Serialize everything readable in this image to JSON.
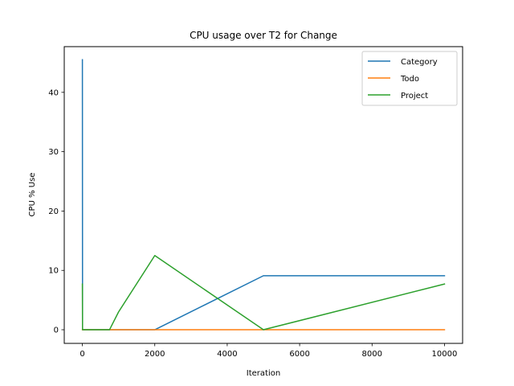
{
  "chart_data": {
    "type": "line",
    "title": "CPU usage over T2 for Change",
    "xlabel": "Iteration",
    "ylabel": "CPU % Use",
    "xlim": [
      -500,
      10500
    ],
    "ylim": [
      -2.3,
      47.7
    ],
    "xticks": [
      0,
      2000,
      4000,
      6000,
      8000,
      10000
    ],
    "yticks": [
      0,
      10,
      20,
      30,
      40
    ],
    "legend_position": "upper right",
    "series": [
      {
        "name": "Category",
        "color": "#1f77b4",
        "points": [
          [
            1,
            45.5
          ],
          [
            5,
            0.0
          ],
          [
            10,
            0.0
          ],
          [
            50,
            0.0
          ],
          [
            100,
            0.0
          ],
          [
            500,
            0.0
          ],
          [
            750,
            0.0
          ],
          [
            1000,
            0.0
          ],
          [
            2000,
            0.0
          ],
          [
            5000,
            9.1
          ],
          [
            10000,
            9.1
          ]
        ]
      },
      {
        "name": "Todo",
        "color": "#ff7f0e",
        "points": [
          [
            1,
            0.0
          ],
          [
            5,
            0.0
          ],
          [
            10,
            0.0
          ],
          [
            50,
            0.0
          ],
          [
            100,
            0.0
          ],
          [
            500,
            0.0
          ],
          [
            750,
            0.0
          ],
          [
            1000,
            0.0
          ],
          [
            2000,
            0.0
          ],
          [
            5000,
            0.0
          ],
          [
            10000,
            0.0
          ]
        ]
      },
      {
        "name": "Project",
        "color": "#2ca02c",
        "points": [
          [
            1,
            7.7
          ],
          [
            5,
            0.0
          ],
          [
            10,
            0.0
          ],
          [
            50,
            0.0
          ],
          [
            100,
            0.0
          ],
          [
            500,
            0.0
          ],
          [
            750,
            0.0
          ],
          [
            1000,
            3.0
          ],
          [
            2000,
            12.5
          ],
          [
            5000,
            0.0
          ],
          [
            10000,
            7.7
          ]
        ]
      }
    ]
  }
}
